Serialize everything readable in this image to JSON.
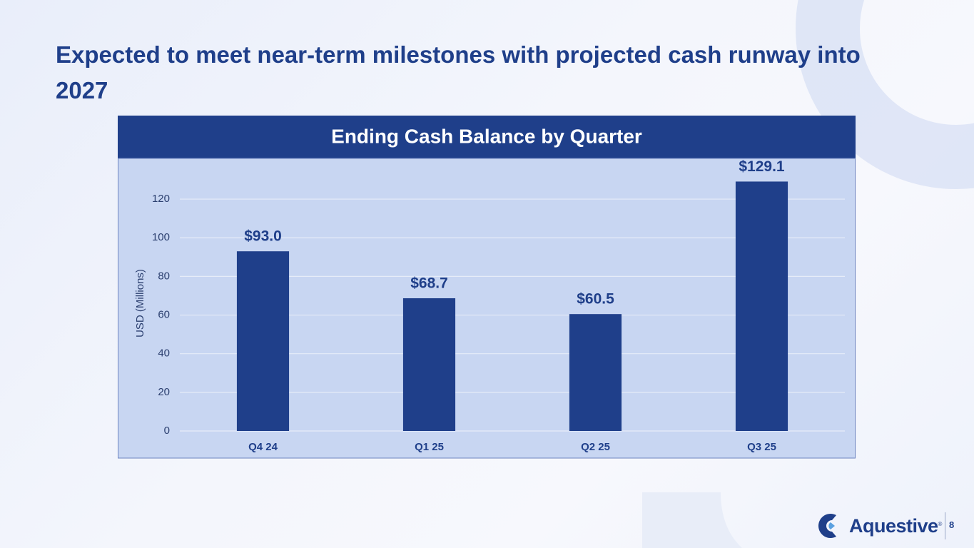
{
  "slide": {
    "title": "Expected to meet near-term milestones with projected cash runway into 2027",
    "logo": "Aquestive",
    "trademark": "®",
    "page_number": "8"
  },
  "chart_data": {
    "type": "bar",
    "title": "Ending Cash Balance by Quarter",
    "ylabel": "USD (Millions)",
    "categories": [
      "Q4 24",
      "Q1 25",
      "Q2 25",
      "Q3 25"
    ],
    "values": [
      93.0,
      68.7,
      60.5,
      129.1
    ],
    "value_labels": [
      "$93.0",
      "$68.7",
      "$60.5",
      "$129.1"
    ],
    "color": "#1f3f8a",
    "ylim": [
      0,
      130
    ],
    "yticks": [
      0,
      20,
      40,
      60,
      80,
      100,
      120
    ],
    "grid": true
  }
}
